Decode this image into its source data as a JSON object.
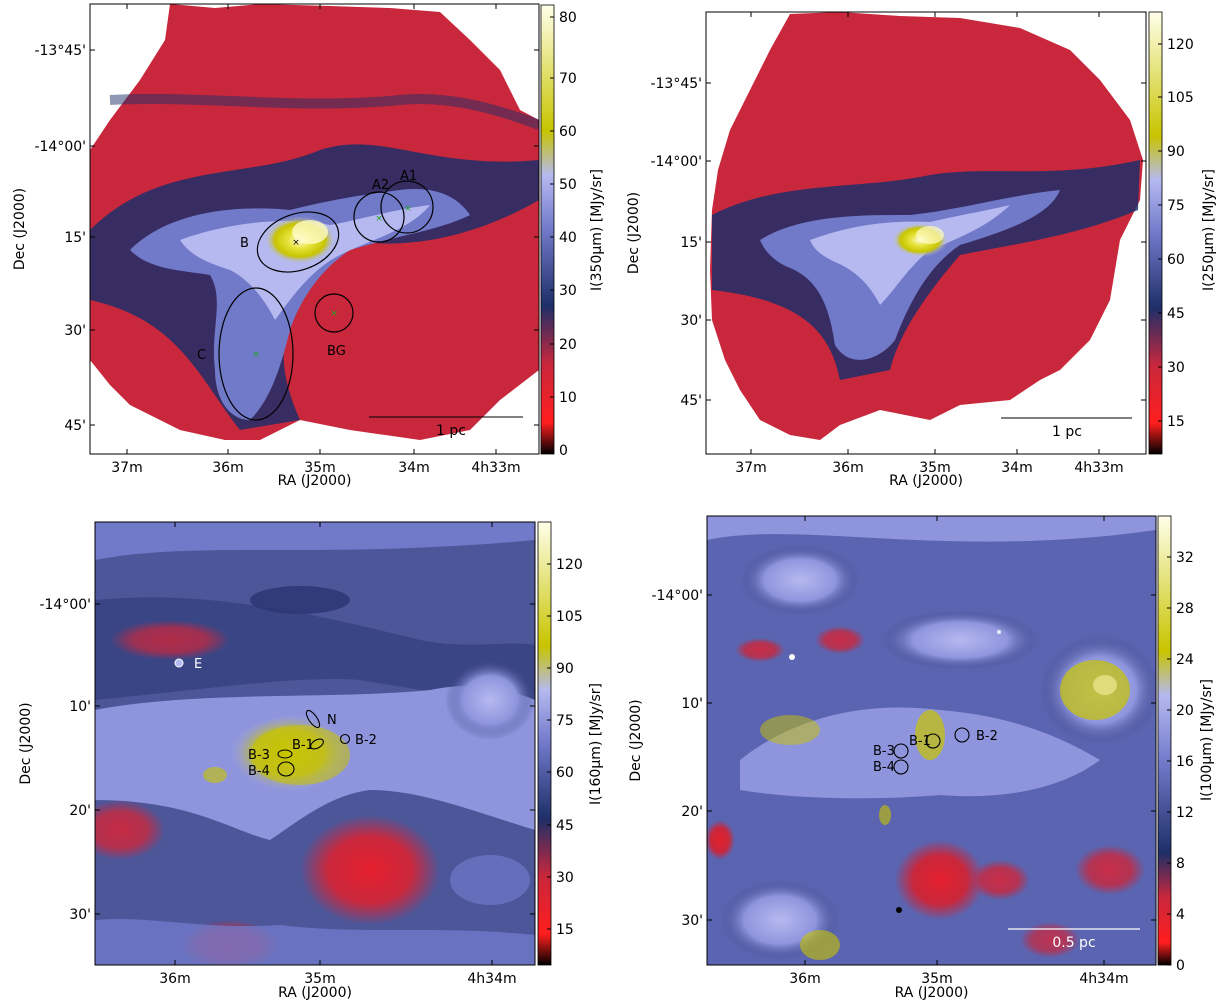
{
  "colors": {
    "cmap": [
      "#000000",
      "#ff1e1e",
      "#c9273c",
      "#1e2f68",
      "#7179c9",
      "#b5b9f0",
      "#c8c400",
      "#ffffea"
    ],
    "ellipse": "#000000",
    "marker": "#1ea51e"
  },
  "chart_data": [
    {
      "type": "heatmap",
      "panel": "top-left",
      "xlabel": "RA (J2000)",
      "ylabel": "Dec (J2000)",
      "cbar_label": "I(350μm) [MJy/sr]",
      "xticks": [
        "37m",
        "36m",
        "35m",
        "34m",
        "4h33m"
      ],
      "yticks": [
        "-13°45'",
        "-14°00'",
        "15'",
        "30'",
        "45'"
      ],
      "cbar_range": [
        -2,
        82
      ],
      "cbar_ticks": [
        "0",
        "10",
        "20",
        "30",
        "40",
        "50",
        "60",
        "70",
        "80"
      ],
      "scalebar": "1 pc",
      "regions": [
        "A1",
        "A2",
        "B",
        "C",
        "BG"
      ]
    },
    {
      "type": "heatmap",
      "panel": "top-right",
      "xlabel": "RA (J2000)",
      "ylabel": "Dec (J2000)",
      "cbar_label": "I(250μm) [MJy/sr]",
      "xticks": [
        "37m",
        "36m",
        "35m",
        "34m",
        "4h33m"
      ],
      "yticks": [
        "-13°45'",
        "-14°00'",
        "15'",
        "30'",
        "45'"
      ],
      "cbar_range": [
        5,
        130
      ],
      "cbar_ticks": [
        "15",
        "30",
        "45",
        "60",
        "75",
        "90",
        "105",
        "120"
      ],
      "scalebar": "1 pc"
    },
    {
      "type": "heatmap",
      "panel": "bottom-left",
      "xlabel": "RA (J2000)",
      "ylabel": "Dec (J2000)",
      "cbar_label": "I(160μm) [MJy/sr]",
      "xticks": [
        "36m",
        "35m",
        "4h34m"
      ],
      "yticks": [
        "-14°00'",
        "10'",
        "20'",
        "30'"
      ],
      "cbar_range": [
        5,
        130
      ],
      "cbar_ticks": [
        "15",
        "30",
        "45",
        "60",
        "75",
        "90",
        "105",
        "120"
      ],
      "regions": [
        "E",
        "N",
        "B-1",
        "B-2",
        "B-3",
        "B-4"
      ]
    },
    {
      "type": "heatmap",
      "panel": "bottom-right",
      "xlabel": "RA (J2000)",
      "ylabel": "Dec (J2000)",
      "cbar_label": "I(100μm) [MJy/sr]",
      "xticks": [
        "36m",
        "35m",
        "4h34m"
      ],
      "yticks": [
        "-14°00'",
        "10'",
        "20'",
        "30'"
      ],
      "cbar_range": [
        0,
        35
      ],
      "cbar_ticks": [
        "0",
        "4",
        "8",
        "12",
        "16",
        "20",
        "24",
        "28",
        "32"
      ],
      "scalebar": "0.5 pc",
      "regions": [
        "B-1",
        "B-2",
        "B-3",
        "B-4"
      ]
    }
  ]
}
